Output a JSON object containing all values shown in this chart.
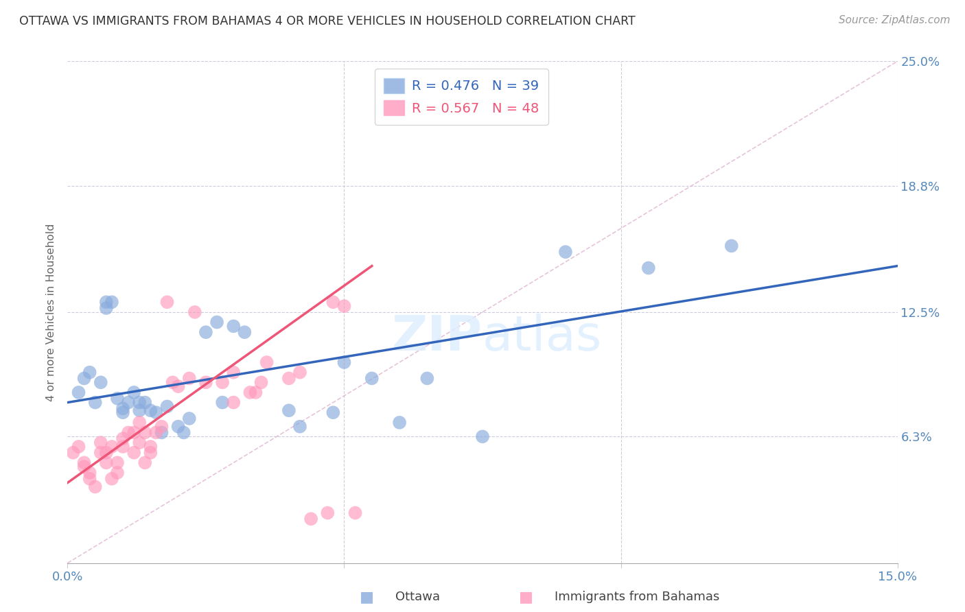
{
  "title": "OTTAWA VS IMMIGRANTS FROM BAHAMAS 4 OR MORE VEHICLES IN HOUSEHOLD CORRELATION CHART",
  "source": "Source: ZipAtlas.com",
  "ylabel": "4 or more Vehicles in Household",
  "xmin": 0.0,
  "xmax": 0.15,
  "ymin": 0.0,
  "ymax": 0.25,
  "ytick_positions": [
    0.0,
    0.063,
    0.125,
    0.188,
    0.25
  ],
  "ytick_labels": [
    "",
    "6.3%",
    "12.5%",
    "18.8%",
    "25.0%"
  ],
  "xtick_positions": [
    0.0,
    0.05,
    0.1,
    0.15
  ],
  "xtick_labels": [
    "0.0%",
    "",
    "",
    "15.0%"
  ],
  "legend_r1": "R = 0.476",
  "legend_n1": "N = 39",
  "legend_r2": "R = 0.567",
  "legend_n2": "N = 48",
  "color_ottawa": "#88AADD",
  "color_bahamas": "#FF99BB",
  "color_trend_ottawa": "#3366BB",
  "color_trend_bahamas": "#EE5577",
  "color_diagonal": "#CCCCDD",
  "background": "#FFFFFF",
  "ottawa_x": [
    0.002,
    0.003,
    0.004,
    0.005,
    0.006,
    0.007,
    0.007,
    0.008,
    0.009,
    0.01,
    0.01,
    0.011,
    0.012,
    0.013,
    0.013,
    0.014,
    0.015,
    0.016,
    0.017,
    0.018,
    0.02,
    0.021,
    0.022,
    0.025,
    0.027,
    0.028,
    0.03,
    0.032,
    0.04,
    0.042,
    0.048,
    0.05,
    0.055,
    0.06,
    0.065,
    0.075,
    0.09,
    0.105,
    0.12
  ],
  "ottawa_y": [
    0.085,
    0.092,
    0.095,
    0.08,
    0.09,
    0.13,
    0.127,
    0.13,
    0.082,
    0.075,
    0.077,
    0.08,
    0.085,
    0.08,
    0.076,
    0.08,
    0.076,
    0.075,
    0.065,
    0.078,
    0.068,
    0.065,
    0.072,
    0.115,
    0.12,
    0.08,
    0.118,
    0.115,
    0.076,
    0.068,
    0.075,
    0.1,
    0.092,
    0.07,
    0.092,
    0.063,
    0.155,
    0.147,
    0.158
  ],
  "bahamas_x": [
    0.001,
    0.002,
    0.003,
    0.003,
    0.004,
    0.004,
    0.005,
    0.006,
    0.006,
    0.007,
    0.007,
    0.008,
    0.008,
    0.009,
    0.009,
    0.01,
    0.01,
    0.011,
    0.012,
    0.012,
    0.013,
    0.013,
    0.014,
    0.014,
    0.015,
    0.015,
    0.016,
    0.017,
    0.018,
    0.019,
    0.02,
    0.022,
    0.023,
    0.025,
    0.028,
    0.03,
    0.03,
    0.033,
    0.034,
    0.035,
    0.036,
    0.04,
    0.042,
    0.044,
    0.047,
    0.048,
    0.05,
    0.052
  ],
  "bahamas_y": [
    0.055,
    0.058,
    0.048,
    0.05,
    0.042,
    0.045,
    0.038,
    0.06,
    0.055,
    0.05,
    0.055,
    0.042,
    0.058,
    0.045,
    0.05,
    0.062,
    0.058,
    0.065,
    0.055,
    0.065,
    0.06,
    0.07,
    0.05,
    0.065,
    0.055,
    0.058,
    0.065,
    0.068,
    0.13,
    0.09,
    0.088,
    0.092,
    0.125,
    0.09,
    0.09,
    0.095,
    0.08,
    0.085,
    0.085,
    0.09,
    0.1,
    0.092,
    0.095,
    0.022,
    0.025,
    0.13,
    0.128,
    0.025
  ],
  "trend_ottawa_x0": 0.0,
  "trend_ottawa_y0": 0.08,
  "trend_ottawa_x1": 0.15,
  "trend_ottawa_y1": 0.148,
  "trend_bahamas_x0": 0.0,
  "trend_bahamas_y0": 0.04,
  "trend_bahamas_x1": 0.055,
  "trend_bahamas_y1": 0.148
}
